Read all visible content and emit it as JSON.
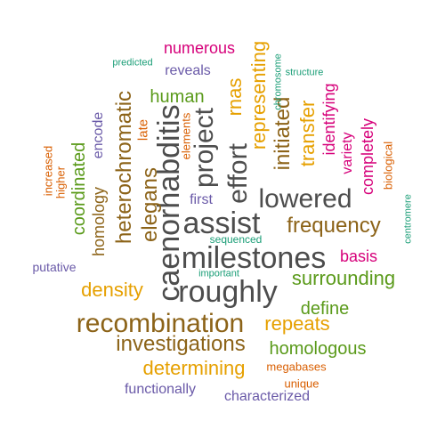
{
  "palette": {
    "dark_gray": "#4d4d4d",
    "brown": "#8c6318",
    "gold": "#e6a000",
    "green": "#5a9a1a",
    "magenta": "#d6007a",
    "orange": "#d95f02",
    "purple": "#6a5aa8",
    "teal": "#1b9e77"
  },
  "words": [
    {
      "text": "milestones",
      "color": "#4d4d4d"
    },
    {
      "text": "caenorhabditis",
      "color": "#4d4d4d"
    },
    {
      "text": "assist",
      "color": "#4d4d4d"
    },
    {
      "text": "roughly",
      "color": "#4d4d4d"
    },
    {
      "text": "recombination",
      "color": "#8c6318"
    },
    {
      "text": "lowered",
      "color": "#4d4d4d"
    },
    {
      "text": "effort",
      "color": "#4d4d4d"
    },
    {
      "text": "project",
      "color": "#4d4d4d"
    },
    {
      "text": "investigations",
      "color": "#8c6318"
    },
    {
      "text": "frequency",
      "color": "#8c6318"
    },
    {
      "text": "heterochromatic",
      "color": "#8c6318"
    },
    {
      "text": "elegans",
      "color": "#8c6318"
    },
    {
      "text": "initiated",
      "color": "#8c6318"
    },
    {
      "text": "determining",
      "color": "#e6a000"
    },
    {
      "text": "density",
      "color": "#e6a000"
    },
    {
      "text": "repeats",
      "color": "#e6a000"
    },
    {
      "text": "representing",
      "color": "#e6a000"
    },
    {
      "text": "transfer",
      "color": "#e6a000"
    },
    {
      "text": "rnas",
      "color": "#e6a000"
    },
    {
      "text": "surrounding",
      "color": "#5a9a1a"
    },
    {
      "text": "homologous",
      "color": "#5a9a1a"
    },
    {
      "text": "define",
      "color": "#5a9a1a"
    },
    {
      "text": "coordinated",
      "color": "#5a9a1a"
    },
    {
      "text": "human",
      "color": "#5a9a1a"
    },
    {
      "text": "homology",
      "color": "#8c6318"
    },
    {
      "text": "numerous",
      "color": "#d6007a"
    },
    {
      "text": "basis",
      "color": "#d6007a"
    },
    {
      "text": "identifying",
      "color": "#d6007a"
    },
    {
      "text": "completely",
      "color": "#d6007a"
    },
    {
      "text": "variety",
      "color": "#d6007a"
    },
    {
      "text": "biological",
      "color": "#d95f02"
    },
    {
      "text": "elements",
      "color": "#d95f02"
    },
    {
      "text": "increased",
      "color": "#d95f02"
    },
    {
      "text": "higher",
      "color": "#d95f02"
    },
    {
      "text": "megabases",
      "color": "#d95f02"
    },
    {
      "text": "unique",
      "color": "#d95f02"
    },
    {
      "text": "late",
      "color": "#d95f02"
    },
    {
      "text": "reveals",
      "color": "#6a5aa8"
    },
    {
      "text": "encode",
      "color": "#6a5aa8"
    },
    {
      "text": "first",
      "color": "#6a5aa8"
    },
    {
      "text": "putative",
      "color": "#6a5aa8"
    },
    {
      "text": "functionally",
      "color": "#6a5aa8"
    },
    {
      "text": "characterized",
      "color": "#6a5aa8"
    },
    {
      "text": "predicted",
      "color": "#1b9e77"
    },
    {
      "text": "structure",
      "color": "#1b9e77"
    },
    {
      "text": "chromosome",
      "color": "#1b9e77"
    },
    {
      "text": "sequenced",
      "color": "#1b9e77"
    },
    {
      "text": "important",
      "color": "#1b9e77"
    },
    {
      "text": "centromere",
      "color": "#1b9e77"
    }
  ]
}
